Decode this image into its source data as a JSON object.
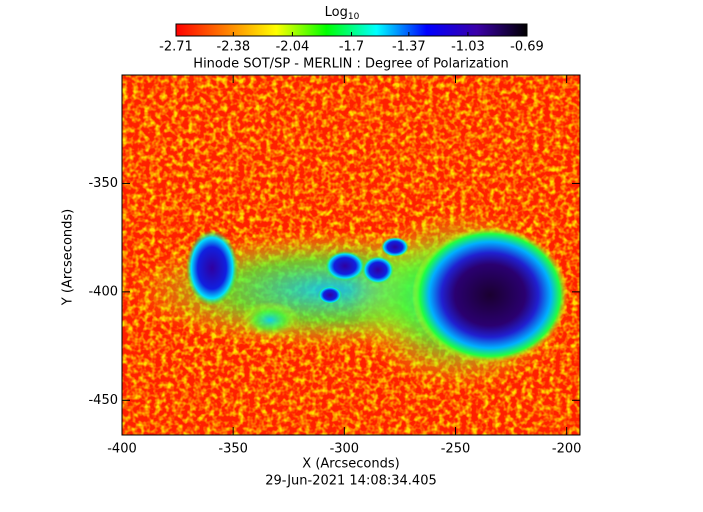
{
  "chart_data": {
    "type": "heatmap",
    "title": "Hinode SOT/SP - MERLIN : Degree of Polarization",
    "colorbar_label": "Log",
    "colorbar_label_sub": "10",
    "colorbar_lim": [
      -2.71,
      -0.69
    ],
    "colorbar_ticks": [
      -2.71,
      -2.38,
      -2.04,
      -1.7,
      -1.37,
      -1.03,
      -0.69
    ],
    "colormap": [
      "#ff0000",
      "#ff7f00",
      "#ffff00",
      "#00ff00",
      "#00ffff",
      "#0000ff",
      "#3a00a8",
      "#000000"
    ],
    "x_label": "X (Arcseconds)",
    "y_label": "Y (Arcseconds)",
    "xlim": [
      -400,
      -194
    ],
    "ylim": [
      -466,
      -300
    ],
    "xticks": [
      -400,
      -350,
      -300,
      -250,
      -200
    ],
    "yticks": [
      -450,
      -400,
      -350
    ],
    "footer": "29-Jun-2021 14:08:34.405"
  }
}
